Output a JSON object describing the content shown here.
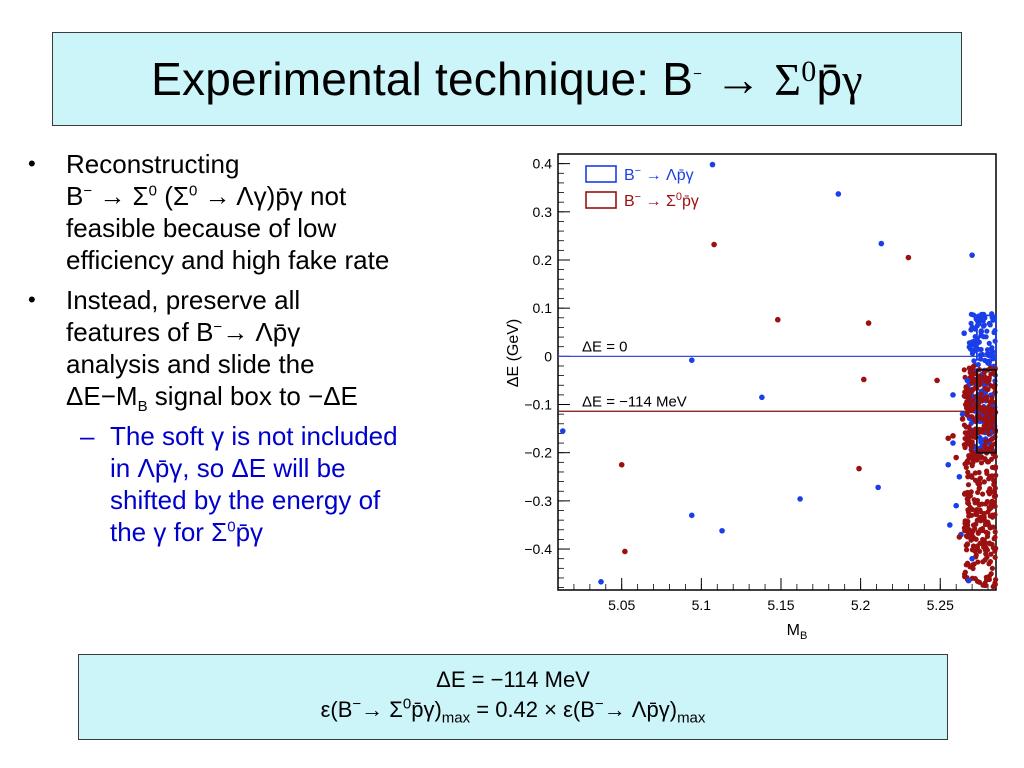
{
  "slide": {
    "title_text": "Experimental technique:  B",
    "title_sup": "−",
    "title_arrow": "→",
    "title_sigma": "Σ",
    "title_zero": "0",
    "title_pbar": "p̄",
    "title_gamma": "γ"
  },
  "bullets": {
    "b1": {
      "line1": "Reconstructing",
      "line2_a": "B",
      "line2_sup": "−",
      "line2_b": " → Σ",
      "line2_sup2": "0",
      "line2_c": " (Σ",
      "line2_sup3": "0",
      "line2_d": " → Λγ)p̄γ not",
      "line3": "feasible because of low",
      "line4": "efficiency and high fake rate"
    },
    "b2": {
      "line1": "Instead, preserve all",
      "line2_a": "features of B",
      "line2_sup": "−",
      "line2_b": "→ Λp̄γ",
      "line3": "analysis and slide the",
      "line4_a": "ΔE−M",
      "line4_sub": "B",
      "line4_b": " signal box to −ΔE"
    },
    "sub1": {
      "line1": "The soft γ is not included",
      "line2": "in Λp̄γ, so ΔE will be",
      "line3": "shifted by the energy of",
      "line4_a": "the γ for Σ",
      "line4_sup": "0",
      "line4_b": "p̄γ"
    }
  },
  "result": {
    "line1": "ΔE = −114 MeV",
    "line2_a": "ε(B",
    "line2_sup1": "−",
    "line2_b": "→ Σ",
    "line2_sup2": "0",
    "line2_c": "p̄γ)",
    "line2_sub1": "max",
    "line2_d": " = 0.42 × ε(B",
    "line2_sup3": "−",
    "line2_e": "→ Λp̄γ)",
    "line2_sub2": "max"
  },
  "chart_data": {
    "type": "scatter",
    "xlabel": "M",
    "xlabel_sub": "B",
    "ylabel": "ΔE (GeV)",
    "xlim": [
      5.01,
      5.285
    ],
    "ylim": [
      -0.485,
      0.42
    ],
    "xticks": [
      5.05,
      5.1,
      5.15,
      5.2,
      5.25
    ],
    "xtick_labels": [
      "5.05",
      "5.1",
      "5.15",
      "5.2",
      "5.25"
    ],
    "yticks": [
      0.4,
      0.3,
      0.2,
      0.1,
      0,
      -0.1,
      -0.2,
      -0.3,
      -0.4
    ],
    "ytick_labels": [
      "0.4",
      "0.3",
      "0.2",
      "0.1",
      "0",
      "−0.1",
      "−0.2",
      "−0.3",
      "−0.4"
    ],
    "grid": false,
    "legend_position": "top-left",
    "series": [
      {
        "name": "B− → Λp̄γ",
        "color": "#1a3ee8",
        "x": [
          5.107,
          5.186,
          5.213,
          5.27,
          5.265,
          5.094,
          5.094,
          5.113,
          5.162,
          5.211,
          5.138,
          5.013,
          5.037,
          5.268,
          5.255,
          5.258,
          5.262,
          5.26,
          5.264,
          5.267,
          5.258,
          5.256,
          5.263,
          5.27
        ],
        "y": [
          0.398,
          0.337,
          0.234,
          0.21,
          0.048,
          -0.008,
          -0.33,
          -0.362,
          -0.296,
          -0.272,
          -0.085,
          -0.155,
          -0.468,
          -0.465,
          -0.225,
          -0.18,
          -0.25,
          -0.31,
          -0.12,
          -0.05,
          -0.08,
          -0.35,
          -0.37,
          -0.42
        ]
      },
      {
        "name": "B− → Σ0p̄γ",
        "color": "#9b1010",
        "x": [
          5.108,
          5.23,
          5.148,
          5.205,
          5.202,
          5.248,
          5.199,
          5.05,
          5.052,
          5.267,
          5.262,
          5.258,
          5.255,
          5.26,
          5.264
        ],
        "y": [
          0.232,
          0.205,
          0.076,
          0.069,
          -0.048,
          -0.05,
          -0.233,
          -0.225,
          -0.405,
          -0.39,
          -0.375,
          -0.165,
          -0.17,
          -0.21,
          -0.13
        ]
      }
    ],
    "dense_cluster": {
      "blue_x_range": [
        5.268,
        5.285
      ],
      "blue_y_range": [
        -0.2,
        0.09
      ],
      "red_x_range": [
        5.265,
        5.285
      ],
      "red_y_range": [
        -0.48,
        -0.02
      ]
    },
    "boxes": [
      {
        "series": "B− → Λp̄γ",
        "color": "#1a3ee8",
        "x_range": [
          5.273,
          5.285
        ],
        "y_range": [
          -0.007,
          0.085
        ]
      },
      {
        "series": "B− → Σ0p̄γ",
        "color": "#111111",
        "x_range": [
          5.273,
          5.285
        ],
        "y_range": [
          -0.2,
          -0.028
        ]
      }
    ],
    "hlines": [
      {
        "y": 0,
        "color": "#3a4de0",
        "label": "ΔE = 0"
      },
      {
        "y": -0.114,
        "color": "#7a1010",
        "label": "ΔE = −114 MeV"
      }
    ],
    "legend": [
      {
        "label_a": "B",
        "label_sup": "−",
        "label_b": " → Λp̄γ",
        "color": "#1a3ee8"
      },
      {
        "label_a": "B",
        "label_sup": "−",
        "label_b": " → Σ",
        "label_sup2": "0",
        "label_c": "p̄γ",
        "color": "#9b1010"
      }
    ]
  }
}
